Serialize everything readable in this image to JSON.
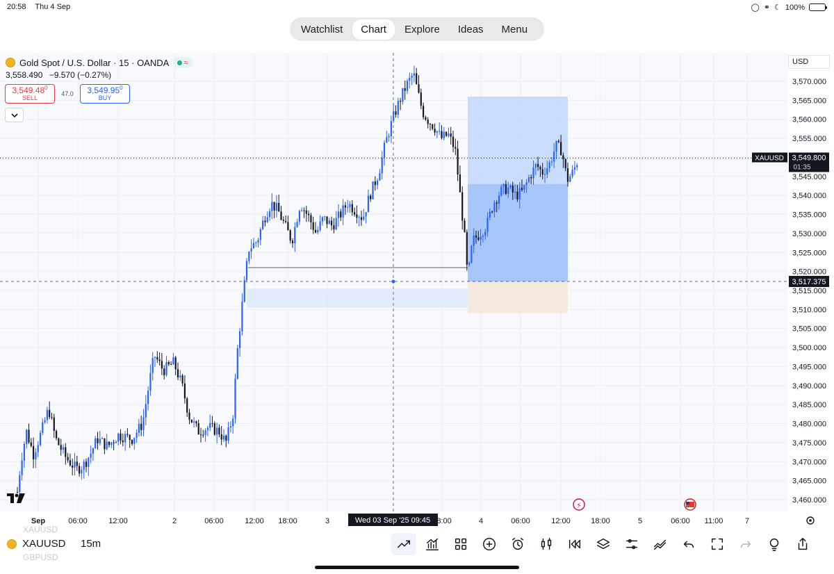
{
  "status_bar": {
    "time": "20:58",
    "date": "Thu 4 Sep",
    "battery": "100%"
  },
  "nav": {
    "tabs": [
      "Watchlist",
      "Chart",
      "Explore",
      "Ideas",
      "Menu"
    ],
    "active": "Chart"
  },
  "symbol": {
    "name": "Gold Spot / U.S. Dollar · 15 · OANDA",
    "ohlc_line": "3,558.490",
    "change": "−9.570 (−0.27%)",
    "sell_price": "3,549.48",
    "sell_sup": "0",
    "sell_label": "SELL",
    "buy_price": "3,549.95",
    "buy_sup": "0",
    "buy_label": "BUY",
    "spread": "47.0"
  },
  "currency": "USD",
  "price_axis": {
    "ticks": [
      "3,570.000",
      "3,565.000",
      "3,560.000",
      "3,555.000",
      "3,550.000",
      "3,545.000",
      "3,540.000",
      "3,535.000",
      "3,530.000",
      "3,525.000",
      "3,520.000",
      "3,515.000",
      "3,510.000",
      "3,505.000",
      "3,500.000",
      "3,495.000",
      "3,490.000",
      "3,485.000",
      "3,480.000",
      "3,475.000",
      "3,470.000",
      "3,465.000",
      "3,460.000"
    ],
    "last_label": "XAUUSD",
    "last_price": "3,549.800",
    "countdown": "01:35",
    "cross_price": "3,517.375"
  },
  "time_axis": {
    "ticks": [
      "Sep",
      "06:00",
      "12:00",
      "2",
      "06:00",
      "12:00",
      "18:00",
      "3",
      "18:00",
      "4",
      "06:00",
      "12:00",
      "18:00",
      "5",
      "06:00",
      "11:00",
      "7"
    ],
    "cursor_label": "Wed 03 Sep '25   09:45"
  },
  "chart_data": {
    "type": "candlestick",
    "interval": "15m",
    "y_range": [
      3457,
      3575
    ],
    "last_price": 3549.8,
    "crosshair_price": 3517.375,
    "position_tool": {
      "entry": 3517.375,
      "target": 3566,
      "stop": 3509
    }
  },
  "bottom": {
    "symbol": "XAUUSD",
    "timeframe": "15m",
    "ghost_above": "XAUUSD",
    "ghost_below": "GBPUSD"
  },
  "colors": {
    "up": "#2962ff",
    "down": "#131722",
    "profit_zone": "#bcd3fb",
    "loss_zone": "#f6e9dd"
  }
}
